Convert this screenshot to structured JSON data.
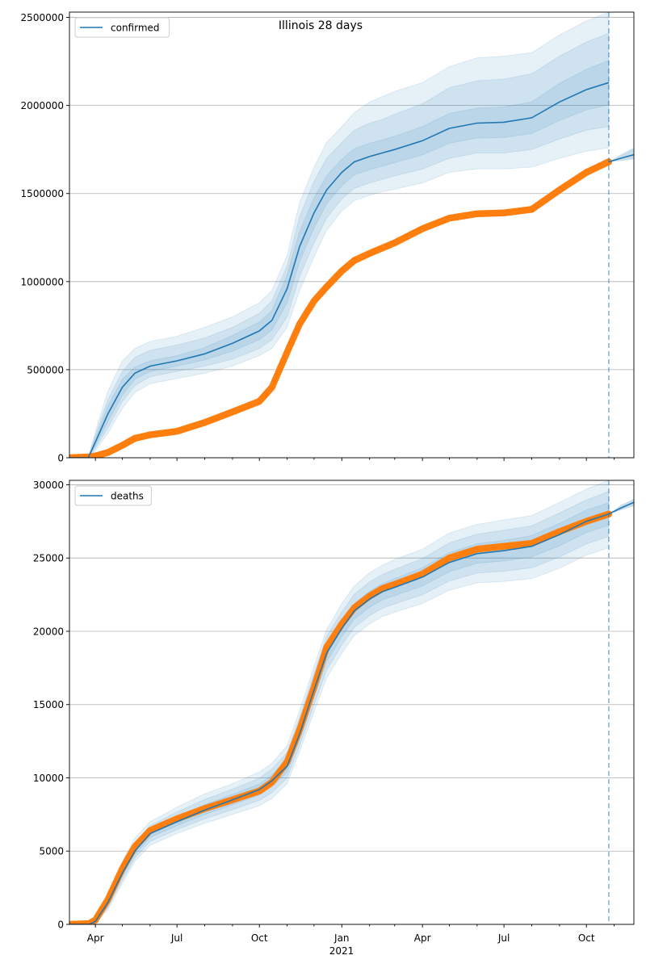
{
  "figure": {
    "title": "Illinois 28 days"
  },
  "colors": {
    "model": "#1f77b4",
    "observed": "#ff7f0e",
    "band": "#1f77b4",
    "grid": "#b0b0b0"
  },
  "x_axis": {
    "tick_labels": [
      "Apr",
      "Jul",
      "Oct",
      "Jan",
      "Apr",
      "Jul",
      "Oct"
    ],
    "tick_dates": [
      "2020-04-01",
      "2020-07-01",
      "2020-10-01",
      "2021-01-01",
      "2021-04-01",
      "2021-07-01",
      "2021-10-01"
    ],
    "year_label": "2021",
    "range": [
      "2020-03-03",
      "2021-11-23"
    ],
    "vline_date": "2021-10-26"
  },
  "chart_data": [
    {
      "type": "line",
      "name": "confirmed",
      "legend": "confirmed",
      "legend_position": "top-left",
      "grid": "horizontal",
      "ylim": [
        0,
        2530000
      ],
      "yticks": [
        0,
        500000,
        1000000,
        1500000,
        2000000,
        2500000
      ],
      "ytick_labels": [
        "0",
        "500000",
        "1000000",
        "1500000",
        "2000000",
        "2500000"
      ],
      "model": {
        "x": [
          "2020-03-03",
          "2020-03-24",
          "2020-04-01",
          "2020-04-15",
          "2020-05-01",
          "2020-05-15",
          "2020-06-01",
          "2020-07-01",
          "2020-08-01",
          "2020-09-01",
          "2020-10-01",
          "2020-10-15",
          "2020-11-01",
          "2020-11-15",
          "2020-12-01",
          "2020-12-15",
          "2021-01-01",
          "2021-01-15",
          "2021-02-01",
          "2021-02-15",
          "2021-03-01",
          "2021-04-01",
          "2021-05-01",
          "2021-06-01",
          "2021-07-01",
          "2021-08-01",
          "2021-09-01",
          "2021-10-01",
          "2021-10-26"
        ],
        "y": [
          0,
          0,
          90000,
          250000,
          400000,
          480000,
          520000,
          550000,
          590000,
          650000,
          720000,
          780000,
          960000,
          1200000,
          1390000,
          1520000,
          1620000,
          1680000,
          1710000,
          1730000,
          1750000,
          1800000,
          1870000,
          1900000,
          1905000,
          1930000,
          2020000,
          2090000,
          2130000
        ]
      },
      "bands": [
        {
          "lower": [
            0,
            0,
            40000,
            140000,
            280000,
            370000,
            420000,
            450000,
            480000,
            520000,
            580000,
            620000,
            740000,
            950000,
            1140000,
            1290000,
            1400000,
            1460000,
            1490000,
            1510000,
            1525000,
            1560000,
            1620000,
            1640000,
            1640000,
            1650000,
            1700000,
            1740000,
            1760000
          ],
          "upper": [
            0,
            0,
            150000,
            380000,
            550000,
            620000,
            660000,
            690000,
            740000,
            800000,
            880000,
            950000,
            1150000,
            1450000,
            1650000,
            1790000,
            1880000,
            1960000,
            2020000,
            2050000,
            2080000,
            2130000,
            2220000,
            2270000,
            2280000,
            2300000,
            2400000,
            2480000,
            2530000
          ]
        },
        {
          "lower": [
            0,
            0,
            55000,
            170000,
            320000,
            410000,
            460000,
            490000,
            520000,
            560000,
            620000,
            670000,
            800000,
            1030000,
            1220000,
            1360000,
            1470000,
            1530000,
            1560000,
            1580000,
            1600000,
            1640000,
            1700000,
            1730000,
            1730000,
            1750000,
            1810000,
            1860000,
            1880000
          ],
          "upper": [
            0,
            0,
            130000,
            330000,
            490000,
            570000,
            610000,
            640000,
            680000,
            740000,
            820000,
            890000,
            1090000,
            1370000,
            1570000,
            1700000,
            1790000,
            1860000,
            1900000,
            1920000,
            1950000,
            2010000,
            2100000,
            2140000,
            2150000,
            2180000,
            2280000,
            2360000,
            2410000
          ]
        },
        {
          "lower": [
            0,
            0,
            70000,
            205000,
            355000,
            445000,
            490000,
            520000,
            555000,
            605000,
            670000,
            725000,
            880000,
            1115000,
            1305000,
            1440000,
            1545000,
            1605000,
            1635000,
            1655000,
            1675000,
            1720000,
            1785000,
            1815000,
            1818000,
            1840000,
            1915000,
            1975000,
            2005000
          ],
          "upper": [
            0,
            0,
            110000,
            295000,
            445000,
            515000,
            550000,
            580000,
            625000,
            695000,
            770000,
            835000,
            1040000,
            1285000,
            1475000,
            1600000,
            1695000,
            1755000,
            1785000,
            1805000,
            1825000,
            1880000,
            1955000,
            1985000,
            1992000,
            2020000,
            2125000,
            2205000,
            2255000
          ]
        }
      ],
      "observed": {
        "x": [
          "2020-03-03",
          "2020-03-25",
          "2020-04-01",
          "2020-04-15",
          "2020-05-01",
          "2020-05-15",
          "2020-06-01",
          "2020-07-01",
          "2020-08-01",
          "2020-09-01",
          "2020-10-01",
          "2020-10-15",
          "2020-11-01",
          "2020-11-15",
          "2020-12-01",
          "2020-12-15",
          "2021-01-01",
          "2021-01-15",
          "2021-02-01",
          "2021-02-15",
          "2021-03-01",
          "2021-04-01",
          "2021-05-01",
          "2021-06-01",
          "2021-07-01",
          "2021-08-01",
          "2021-09-01",
          "2021-10-01",
          "2021-10-26"
        ],
        "y": [
          0,
          5000,
          10000,
          30000,
          70000,
          110000,
          130000,
          150000,
          200000,
          260000,
          320000,
          400000,
          600000,
          760000,
          890000,
          970000,
          1060000,
          1120000,
          1160000,
          1190000,
          1220000,
          1300000,
          1360000,
          1385000,
          1390000,
          1410000,
          1520000,
          1620000,
          1680000
        ]
      },
      "forecast": {
        "x": [
          "2021-10-26",
          "2021-11-08",
          "2021-11-23"
        ],
        "y": [
          1680000,
          1700000,
          1720000
        ],
        "lower": [
          1680000,
          1685000,
          1695000
        ],
        "upper": [
          1680000,
          1720000,
          1760000
        ]
      }
    },
    {
      "type": "line",
      "name": "deaths",
      "legend": "deaths",
      "legend_position": "top-left",
      "grid": "horizontal",
      "ylim": [
        0,
        30300
      ],
      "yticks": [
        0,
        5000,
        10000,
        15000,
        20000,
        25000,
        30000
      ],
      "ytick_labels": [
        "0",
        "5000",
        "10000",
        "15000",
        "20000",
        "25000",
        "30000"
      ],
      "model": {
        "x": [
          "2020-03-03",
          "2020-03-25",
          "2020-04-01",
          "2020-04-15",
          "2020-05-01",
          "2020-05-15",
          "2020-06-01",
          "2020-07-01",
          "2020-08-01",
          "2020-09-01",
          "2020-10-01",
          "2020-10-15",
          "2020-11-01",
          "2020-11-15",
          "2020-12-01",
          "2020-12-15",
          "2021-01-01",
          "2021-01-15",
          "2021-02-01",
          "2021-02-15",
          "2021-03-01",
          "2021-04-01",
          "2021-05-01",
          "2021-06-01",
          "2021-07-01",
          "2021-08-01",
          "2021-09-01",
          "2021-10-01",
          "2021-10-26"
        ],
        "y": [
          0,
          0,
          200,
          1500,
          3500,
          5000,
          6200,
          7000,
          7800,
          8500,
          9200,
          9800,
          10800,
          13000,
          16000,
          18500,
          20200,
          21400,
          22200,
          22700,
          23000,
          23700,
          24700,
          25300,
          25500,
          25800,
          26600,
          27500,
          28000
        ]
      },
      "bands": [
        {
          "lower": [
            0,
            0,
            100,
            1000,
            2800,
            4300,
            5400,
            6200,
            6900,
            7500,
            8100,
            8600,
            9600,
            11800,
            14500,
            16800,
            18500,
            19700,
            20500,
            21000,
            21300,
            21900,
            22800,
            23300,
            23400,
            23600,
            24300,
            25200,
            25700
          ],
          "upper": [
            0,
            0,
            350,
            2100,
            4300,
            5900,
            7000,
            8000,
            8900,
            9600,
            10400,
            11000,
            12200,
            14600,
            17600,
            20100,
            21900,
            23100,
            24000,
            24500,
            24900,
            25600,
            26700,
            27300,
            27600,
            27900,
            28800,
            29700,
            30300
          ]
        },
        {
          "lower": [
            0,
            0,
            130,
            1160,
            3030,
            4530,
            5670,
            6470,
            7200,
            7830,
            8460,
            8990,
            10000,
            12200,
            15000,
            17330,
            19070,
            20270,
            21070,
            21570,
            21870,
            22500,
            23430,
            23970,
            24100,
            24330,
            25070,
            25970,
            26470
          ],
          "upper": [
            0,
            0,
            300,
            1900,
            4030,
            5600,
            6730,
            7670,
            8530,
            9230,
            9970,
            10600,
            11730,
            14130,
            17130,
            19630,
            21330,
            22530,
            23370,
            23870,
            24230,
            24970,
            26030,
            26630,
            26900,
            27200,
            28070,
            28970,
            29530
          ]
        },
        {
          "lower": [
            0,
            0,
            165,
            1330,
            3270,
            4770,
            5940,
            6740,
            7500,
            8170,
            8830,
            9400,
            10400,
            12600,
            15500,
            17920,
            19640,
            20840,
            21640,
            22140,
            22440,
            23100,
            24070,
            24640,
            24800,
            25070,
            25840,
            26740,
            27240
          ],
          "upper": [
            0,
            0,
            250,
            1700,
            3770,
            5300,
            6470,
            7340,
            8170,
            8870,
            9570,
            10200,
            11270,
            13600,
            16600,
            19000,
            20700,
            21900,
            22740,
            23240,
            23600,
            24340,
            25370,
            25970,
            26200,
            26530,
            27370,
            28270,
            28770
          ]
        }
      ],
      "observed": {
        "x": [
          "2020-03-03",
          "2020-03-25",
          "2020-04-01",
          "2020-04-15",
          "2020-05-01",
          "2020-05-15",
          "2020-06-01",
          "2020-07-01",
          "2020-08-01",
          "2020-09-01",
          "2020-10-01",
          "2020-10-15",
          "2020-11-01",
          "2020-11-15",
          "2020-12-01",
          "2020-12-15",
          "2021-01-01",
          "2021-01-15",
          "2021-02-01",
          "2021-02-15",
          "2021-03-01",
          "2021-04-01",
          "2021-05-01",
          "2021-06-01",
          "2021-07-01",
          "2021-08-01",
          "2021-09-01",
          "2021-10-01",
          "2021-10-26"
        ],
        "y": [
          0,
          50,
          300,
          1700,
          3800,
          5300,
          6400,
          7200,
          7900,
          8500,
          9100,
          9700,
          11100,
          13300,
          16200,
          18900,
          20500,
          21600,
          22400,
          22900,
          23200,
          23900,
          25000,
          25600,
          25800,
          26000,
          26800,
          27500,
          28000
        ]
      },
      "forecast": {
        "x": [
          "2021-10-26",
          "2021-11-08",
          "2021-11-23"
        ],
        "y": [
          28000,
          28400,
          28800
        ],
        "lower": [
          28000,
          28250,
          28550
        ],
        "upper": [
          28000,
          28600,
          29050
        ]
      }
    }
  ]
}
